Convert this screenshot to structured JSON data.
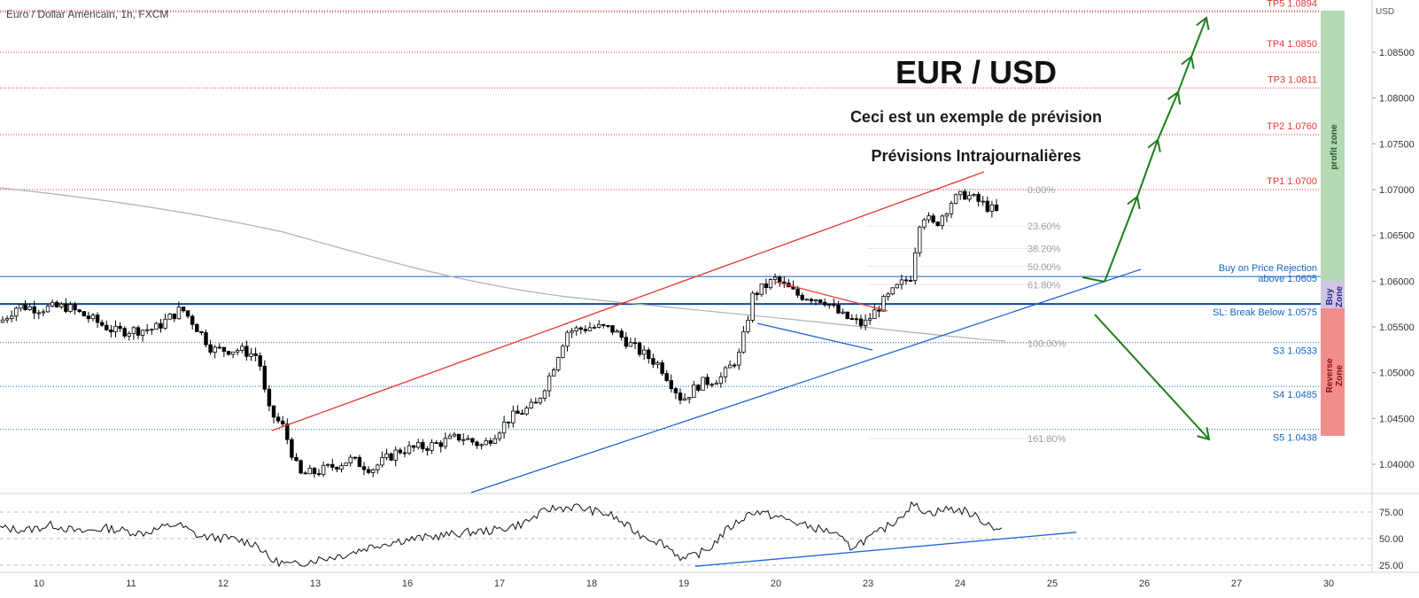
{
  "header": {
    "title": "Euro / Dollar Américain, 1h, FXCM"
  },
  "price_axis": {
    "currency": "USD",
    "ticks": [
      "1.08500",
      "1.08000",
      "1.07500",
      "1.07000",
      "1.06500",
      "1.06000",
      "1.05500",
      "1.05000",
      "1.04500",
      "1.04000"
    ]
  },
  "rsi_axis": {
    "ticks": [
      "75.00",
      "50.00",
      "25.00"
    ]
  },
  "time_axis": {
    "labels": [
      "10",
      "11",
      "12",
      "13",
      "16",
      "17",
      "18",
      "19",
      "20",
      "23",
      "24",
      "25",
      "26",
      "27",
      "30"
    ]
  },
  "annotations": {
    "main_title": "EUR / USD",
    "subtitle1": "Ceci est un exemple de prévision",
    "subtitle2": "Prévisions Intrajournalières"
  },
  "zones": {
    "profit": "profit zone",
    "buy_line1": "Buy",
    "buy_line2": "Zone",
    "reverse_line1": "Reverse",
    "reverse_line2": "Zone"
  },
  "level_labels": {
    "tp5": "TP5 1.0894",
    "tp4": "TP4 1.0850",
    "tp3": "TP3 1.0811",
    "tp2": "TP2 1.0760",
    "tp1": "TP1 1.0700",
    "buy_line1": "Buy on Price Rejection",
    "buy_line2": "above 1.0605",
    "sl": "SL: Break Below 1.0575",
    "s3": "S3 1.0533",
    "s4": "S4 1.0485",
    "s5": "S5 1.0438"
  },
  "fib_labels": [
    "0.00%",
    "23.60%",
    "38.20%",
    "50.00%",
    "61.80%",
    "100.00%",
    "161.80%"
  ],
  "colors": {
    "tp": "#e53935",
    "support": "#1565c0",
    "up_candle": "#ffffff",
    "down_candle": "#000000",
    "profit_zone": "#b5d9b5",
    "buy_zone": "#cfc6e6",
    "reverse_zone": "#f28d8d",
    "arrow": "#1b7f1b"
  },
  "chart_data": {
    "type": "candlestick",
    "title": "Euro / Dollar Américain, 1h, FXCM",
    "xlabel": "",
    "ylabel": "USD",
    "ylim": [
      1.0365,
      1.0915
    ],
    "levels": {
      "TP5": 1.0894,
      "TP4": 1.085,
      "TP3": 1.0811,
      "TP2": 1.076,
      "TP1": 1.07,
      "buy": 1.0605,
      "stop_loss": 1.0575,
      "S3": 1.0533,
      "S4": 1.0485,
      "S5": 1.0438
    },
    "fibonacci": {
      "levels": [
        "0.00%",
        "23.60%",
        "38.20%",
        "50.00%",
        "61.80%",
        "100.00%",
        "161.80%"
      ],
      "high": 1.07,
      "low": 1.0532
    },
    "price_path": [
      {
        "day": "10",
        "price": 1.057
      },
      {
        "day": "11",
        "price": 1.0548
      },
      {
        "day": "12",
        "price": 1.052
      },
      {
        "day": "13",
        "price": 1.038
      },
      {
        "day": "16",
        "price": 1.0395
      },
      {
        "day": "17",
        "price": 1.0545
      },
      {
        "day": "18",
        "price": 1.0535
      },
      {
        "day": "19",
        "price": 1.047
      },
      {
        "day": "20",
        "price": 1.0598
      },
      {
        "day": "23",
        "price": 1.0575
      },
      {
        "day": "24",
        "price": 1.0675
      }
    ],
    "rsi": {
      "ylim": [
        25,
        75
      ],
      "ticks": [
        75,
        50,
        25
      ]
    }
  }
}
